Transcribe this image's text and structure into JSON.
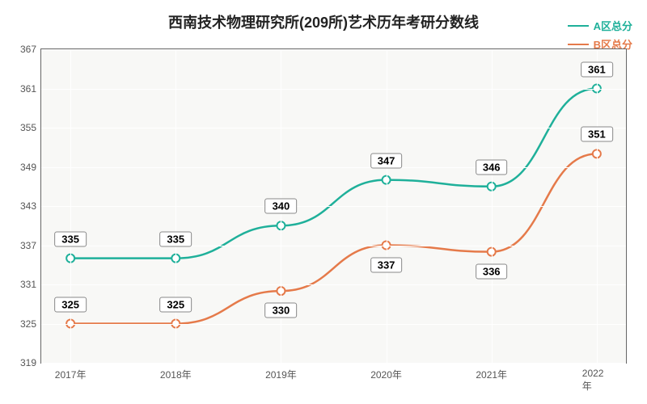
{
  "chart": {
    "type": "line",
    "title": "西南技术物理研究所(209所)艺术历年考研分数线",
    "title_fontsize": 18,
    "title_color": "#222222",
    "background_color": "#ffffff",
    "plot_background_color": "#f8f8f6",
    "grid_color": "#ffffff",
    "axis_color": "#666666",
    "tick_fontsize": 12,
    "tick_color": "#555555",
    "label_fontsize": 13,
    "label_bg": "#ffffff",
    "label_border": "#888888",
    "legend": {
      "position": "top-right",
      "fontsize": 13,
      "items": [
        {
          "text": "A区总分",
          "color": "#1fb09a"
        },
        {
          "text": "B区总分",
          "color": "#e57a4a"
        }
      ]
    },
    "x": {
      "categories": [
        "2017年",
        "2018年",
        "2019年",
        "2020年",
        "2021年",
        "2022年"
      ],
      "positions_pct": [
        5,
        23,
        41,
        59,
        77,
        95
      ]
    },
    "y": {
      "min": 319,
      "max": 367,
      "step": 6,
      "ticks": [
        319,
        325,
        331,
        337,
        343,
        349,
        355,
        361,
        367
      ]
    },
    "series": [
      {
        "name": "A区总分",
        "color": "#1fb09a",
        "line_width": 2.5,
        "marker": "circle",
        "marker_size": 5,
        "values": [
          335,
          335,
          340,
          347,
          346,
          361
        ]
      },
      {
        "name": "B区总分",
        "color": "#e57a4a",
        "line_width": 2.5,
        "marker": "circle",
        "marker_size": 5,
        "values": [
          325,
          325,
          330,
          337,
          336,
          351
        ]
      }
    ],
    "data_label_offsets": {
      "A": [
        "above",
        "above",
        "above",
        "above",
        "above",
        "above"
      ],
      "B": [
        "above",
        "above",
        "below",
        "below",
        "below",
        "above"
      ]
    }
  }
}
